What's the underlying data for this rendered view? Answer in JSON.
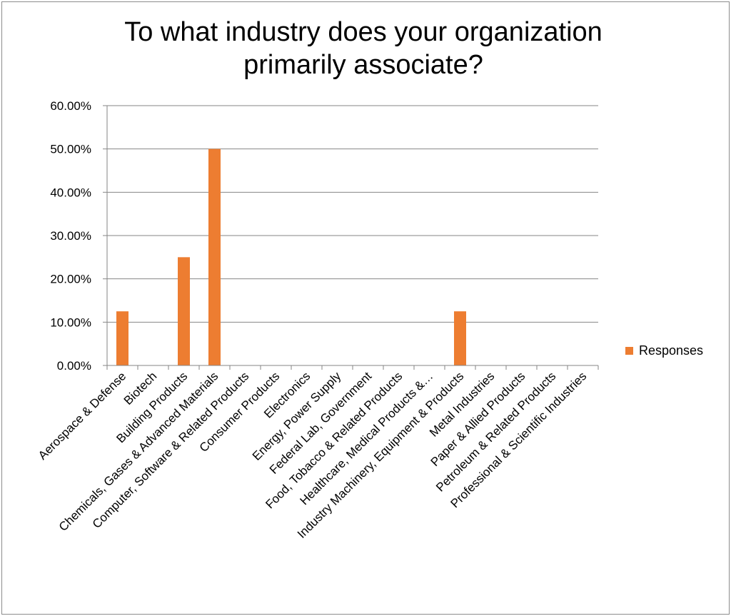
{
  "chart_data": {
    "type": "bar",
    "title": "To what industry does your organization primarily associate?",
    "title_lines": [
      "To what industry does your organization",
      "primarily associate?"
    ],
    "xlabel": "",
    "ylabel": "",
    "ylim": [
      0,
      0.6
    ],
    "y_ticks": [
      0,
      0.1,
      0.2,
      0.3,
      0.4,
      0.5,
      0.6
    ],
    "y_tick_labels": [
      "0.00%",
      "10.00%",
      "20.00%",
      "30.00%",
      "40.00%",
      "50.00%",
      "60.00%"
    ],
    "grid": true,
    "legend_position": "right",
    "categories": [
      "Aerospace & Defense",
      "Biotech",
      "Building Products",
      "Chemicals, Gases & Advanced Materials",
      "Computer, Software & Related Products",
      "Consumer Products",
      "Electronics",
      "Energy, Power Supply",
      "Federal Lab, Government",
      "Food, Tobacco & Related Products",
      "Healthcare, Medical Products &…",
      "Industry Machinery, Equipment & Products",
      "Metal Industries",
      "Paper & Allied Products",
      "Petroleum & Related Products",
      "Professional & Scientific Industries"
    ],
    "series": [
      {
        "name": "Responses",
        "color": "#ed7d31",
        "values": [
          0.125,
          0,
          0.25,
          0.5,
          0,
          0,
          0,
          0,
          0,
          0,
          0,
          0.125,
          0,
          0,
          0,
          0
        ]
      }
    ]
  }
}
